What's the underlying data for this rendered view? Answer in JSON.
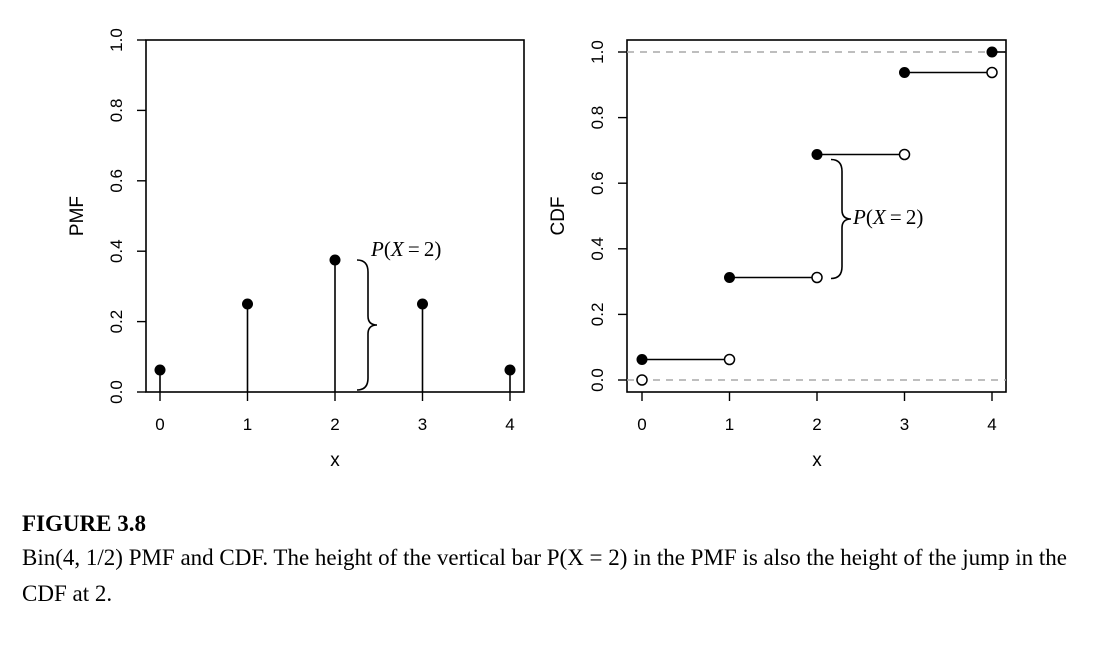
{
  "chart_data": [
    {
      "type": "stem",
      "x": [
        0,
        1,
        2,
        3,
        4
      ],
      "values": [
        0.0625,
        0.25,
        0.375,
        0.25,
        0.0625
      ],
      "xlabel": "x",
      "ylabel": "PMF",
      "xticks": [
        "0",
        "1",
        "2",
        "3",
        "4"
      ],
      "yticks": [
        "0.0",
        "0.2",
        "0.4",
        "0.6",
        "0.8",
        "1.0"
      ],
      "xlim": [
        0,
        4
      ],
      "ylim": [
        0,
        1
      ],
      "annotation": {
        "text": "P(X = 2)",
        "x": 2,
        "y_range": [
          0,
          0.375
        ]
      }
    },
    {
      "type": "step",
      "steps": [
        {
          "from": 0,
          "to": 1,
          "y": 0.0625
        },
        {
          "from": 1,
          "to": 2,
          "y": 0.3125
        },
        {
          "from": 2,
          "to": 3,
          "y": 0.6875
        },
        {
          "from": 3,
          "to": 4,
          "y": 0.9375
        }
      ],
      "final_point": {
        "x": 4,
        "y": 1.0
      },
      "open_points": [
        {
          "x": 0,
          "y": 0
        },
        {
          "x": 1,
          "y": 0.0625
        },
        {
          "x": 2,
          "y": 0.3125
        },
        {
          "x": 3,
          "y": 0.6875
        },
        {
          "x": 4,
          "y": 0.9375
        }
      ],
      "reference_lines": [
        0,
        1
      ],
      "xlabel": "x",
      "ylabel": "CDF",
      "xticks": [
        "0",
        "1",
        "2",
        "3",
        "4"
      ],
      "yticks": [
        "0.0",
        "0.2",
        "0.4",
        "0.6",
        "0.8",
        "1.0"
      ],
      "xlim": [
        0,
        4
      ],
      "ylim": [
        0,
        1
      ],
      "annotation": {
        "text": "P(X = 2)",
        "x": 2,
        "y_range": [
          0.3125,
          0.6875
        ]
      }
    }
  ],
  "caption": {
    "heading": "FIGURE 3.8",
    "body": "Bin(4, 1/2) PMF and CDF. The height of the vertical bar P(X = 2) in the PMF is also the height of the jump in the CDF at 2."
  },
  "colors": {
    "ink": "#000000",
    "reference": "#a8a8a8"
  }
}
